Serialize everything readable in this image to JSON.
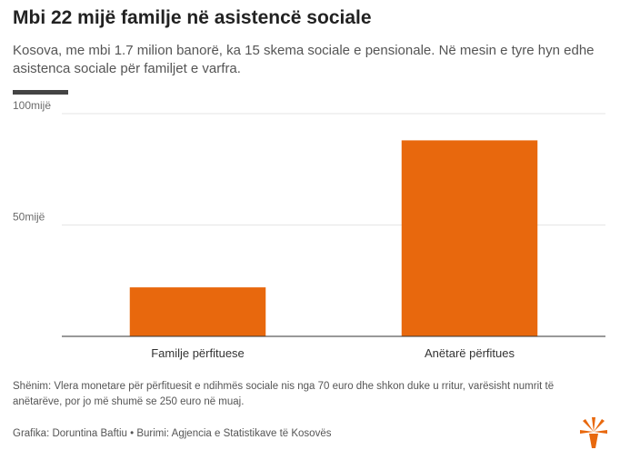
{
  "header": {
    "title": "Mbi 22 mijë familje në asistencë sociale",
    "subtitle": "Kosova, me mbi 1.7 milion banorë, ka 15 skema sociale e pensionale. Në mesin e tyre hyn edhe asistenca sociale për familjet e varfra."
  },
  "chart_data": {
    "type": "bar",
    "categories": [
      "Familje përfituese",
      "Anëtarë përfitues"
    ],
    "values": [
      22,
      88
    ],
    "ylim": [
      0,
      100
    ],
    "yticks": [
      {
        "value": 50,
        "label": "50mijë"
      },
      {
        "value": 100,
        "label": "100mijë"
      }
    ],
    "grid": true,
    "colors": {
      "bar": "#e8680d",
      "grid": "#e6e6e6",
      "axis": "#333333"
    }
  },
  "footer": {
    "note": "Shënim: Vlera monetare për përfituesit e ndihmës sociale nis nga 70 euro dhe shkon duke u rritur, varësisht numrit të anëtarëve, por jo më shumë se 250 euro në muaj.",
    "source": "Grafika: Doruntina Baftiu • Burimi: Agjencia e Statistikave të Kosovës",
    "logo_icon": "rfe-sunburst-icon",
    "logo_color": "#e8680d"
  }
}
